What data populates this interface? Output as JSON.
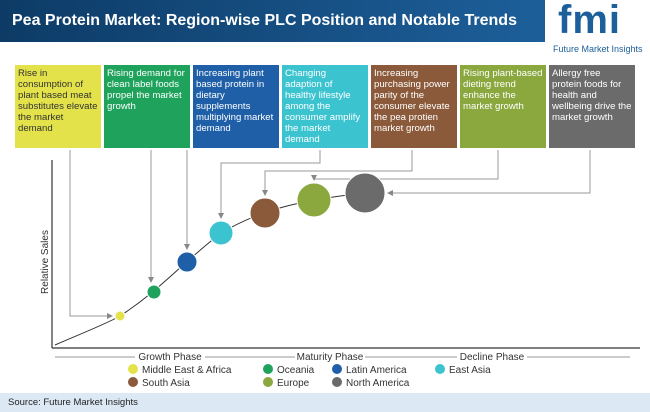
{
  "header": {
    "title": "Pea Protein Market: Region-wise PLC Position and Notable Trends"
  },
  "logo": {
    "name": "fmi",
    "tagline": "Future Market Insights"
  },
  "boxes": [
    "Rise in consumption of plant based meat substitutes elevate the market demand",
    "Rising demand for clean label foods propel the market growth",
    "Increasing plant based protein in dietary supplements multiplying market demand",
    "Changing adaption of healthy lifestyle among the consumer amplify the market demand",
    "Increasing purchasing power parity of the consumer elevate the pea protien market growth",
    "Rising plant-based dieting trend enhance the market growth",
    "Allergy free protein foods for health and wellbeing drive the market growth"
  ],
  "axis": {
    "y_label": "Relative Sales"
  },
  "phases": [
    "Growth Phase",
    "Maturity Phase",
    "Decline Phase"
  ],
  "legend": [
    {
      "name": "Middle East & Africa",
      "color": "#e3e24a"
    },
    {
      "name": "Oceania",
      "color": "#1fa35c"
    },
    {
      "name": "Latin America",
      "color": "#1e5fa8"
    },
    {
      "name": "East Asia",
      "color": "#3cc3d0"
    },
    {
      "name": "South Asia",
      "color": "#8b5a3a"
    },
    {
      "name": "Europe",
      "color": "#8aa83e"
    },
    {
      "name": "North America",
      "color": "#6b6b6b"
    }
  ],
  "source": "Source: Future Market Insights"
}
